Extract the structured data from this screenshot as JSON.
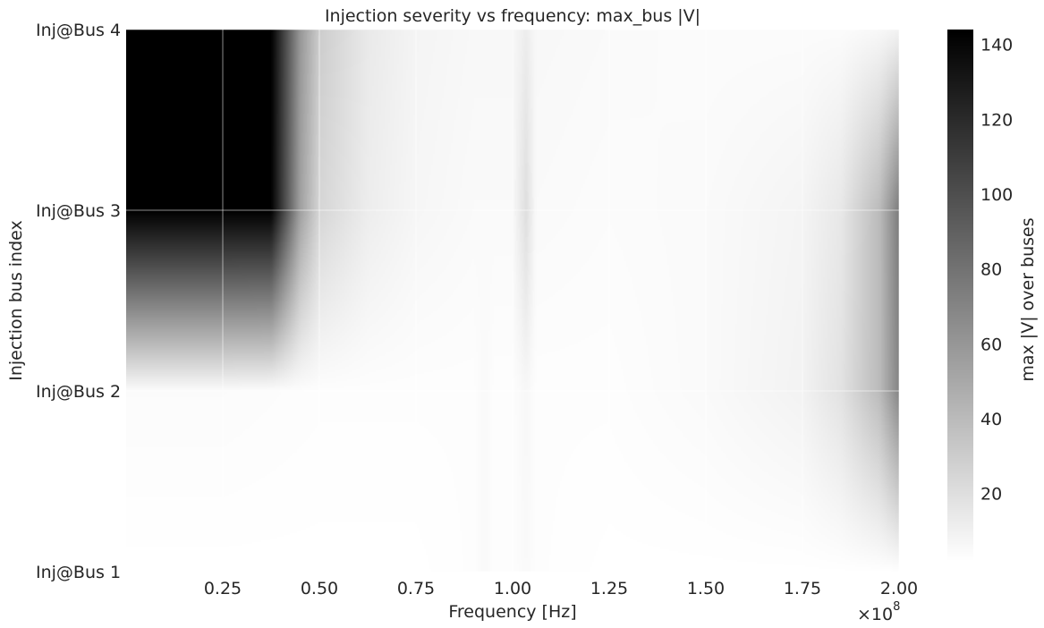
{
  "chart_data": {
    "type": "heatmap",
    "title": "Injection severity vs frequency: max_bus |V|",
    "xlabel": "Frequency [Hz]",
    "ylabel": "Injection bus index",
    "x_offset_label": "×10",
    "x_offset_exponent": "8",
    "xlim": [
      0,
      200000000
    ],
    "x_ticks": [
      25000000,
      50000000,
      75000000,
      100000000,
      125000000,
      150000000,
      175000000,
      200000000
    ],
    "x_tick_labels": [
      "0.25",
      "0.50",
      "0.75",
      "1.00",
      "1.25",
      "1.50",
      "1.75",
      "2.00"
    ],
    "y_categories": [
      "Inj@Bus 1",
      "Inj@Bus 2",
      "Inj@Bus 3",
      "Inj@Bus 4"
    ],
    "colorbar_label": "max |V| over buses",
    "colorbar_range": [
      2,
      144
    ],
    "colorbar_ticks": [
      "20",
      "40",
      "60",
      "80",
      "100",
      "120",
      "140"
    ],
    "colorbar_tick_values": [
      20,
      40,
      60,
      80,
      100,
      120,
      140
    ],
    "colormap": "greys",
    "grid": true,
    "series": [
      {
        "name": "Inj@Bus 1",
        "x": [
          0,
          25000000,
          50000000,
          75000000,
          90000000,
          93000000,
          95000000,
          100000000,
          103500000,
          106000000,
          125000000,
          150000000,
          175000000,
          200000000
        ],
        "values": [
          2,
          2,
          2,
          2,
          3,
          5,
          3,
          3,
          5,
          3,
          2,
          2,
          2,
          2
        ]
      },
      {
        "name": "Inj@Bus 2",
        "x": [
          0,
          25000000,
          50000000,
          75000000,
          90000000,
          93000000,
          95000000,
          100000000,
          103500000,
          106000000,
          125000000,
          150000000,
          175000000,
          185000000,
          195000000,
          200000000
        ],
        "values": [
          4,
          4,
          3,
          3,
          3,
          5,
          3,
          3,
          6,
          3,
          3,
          5,
          9,
          18,
          40,
          70
        ]
      },
      {
        "name": "Inj@Bus 3",
        "x": [
          0,
          25000000,
          37500000,
          45000000,
          50000000,
          62500000,
          75000000,
          90000000,
          100000000,
          103500000,
          106000000,
          125000000,
          150000000,
          175000000,
          185000000,
          195000000,
          200000000
        ],
        "values": [
          144,
          144,
          144,
          55,
          25,
          12,
          7,
          5,
          5,
          20,
          5,
          4,
          5,
          8,
          15,
          40,
          75
        ]
      },
      {
        "name": "Inj@Bus 4",
        "x": [
          0,
          25000000,
          37500000,
          45000000,
          50000000,
          62500000,
          75000000,
          90000000,
          100000000,
          103500000,
          106000000,
          125000000,
          150000000,
          175000000,
          185000000,
          195000000,
          200000000
        ],
        "values": [
          144,
          144,
          144,
          60,
          30,
          14,
          8,
          6,
          6,
          12,
          6,
          5,
          4,
          4,
          4,
          6,
          9
        ]
      }
    ]
  }
}
